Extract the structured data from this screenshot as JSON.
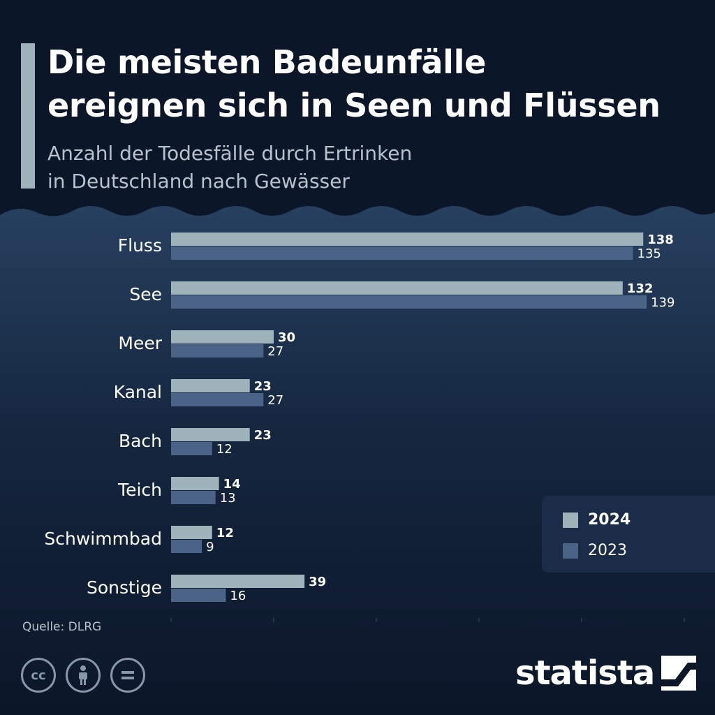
{
  "header": {
    "title": "Die meisten Badeunfälle\nereignen sich in Seen und Flüssen",
    "subtitle": "Anzahl der Todesfälle durch Ertrinken\nin Deutschland nach Gewässer"
  },
  "colors": {
    "background": "#0b1628",
    "series_2024": "#9fb4ba",
    "series_2023": "#4a6386",
    "accent": "#9fb4ba"
  },
  "chart_data": {
    "type": "bar",
    "orientation": "horizontal",
    "categories": [
      "Fluss",
      "See",
      "Meer",
      "Kanal",
      "Bach",
      "Teich",
      "Schwimmbad",
      "Sonstige"
    ],
    "series": [
      {
        "name": "2024",
        "values": [
          138,
          132,
          30,
          23,
          23,
          14,
          12,
          39
        ]
      },
      {
        "name": "2023",
        "values": [
          135,
          139,
          27,
          27,
          12,
          13,
          9,
          16
        ]
      }
    ],
    "xlim": [
      0,
      150
    ],
    "grid": false,
    "legend_position": "bottom-right"
  },
  "legend": {
    "items": [
      "2024",
      "2023"
    ]
  },
  "footer": {
    "source": "Quelle: DLRG",
    "cc_icons": [
      "cc-icon",
      "attribution-icon",
      "no-derivatives-icon"
    ],
    "brand": "statista"
  }
}
